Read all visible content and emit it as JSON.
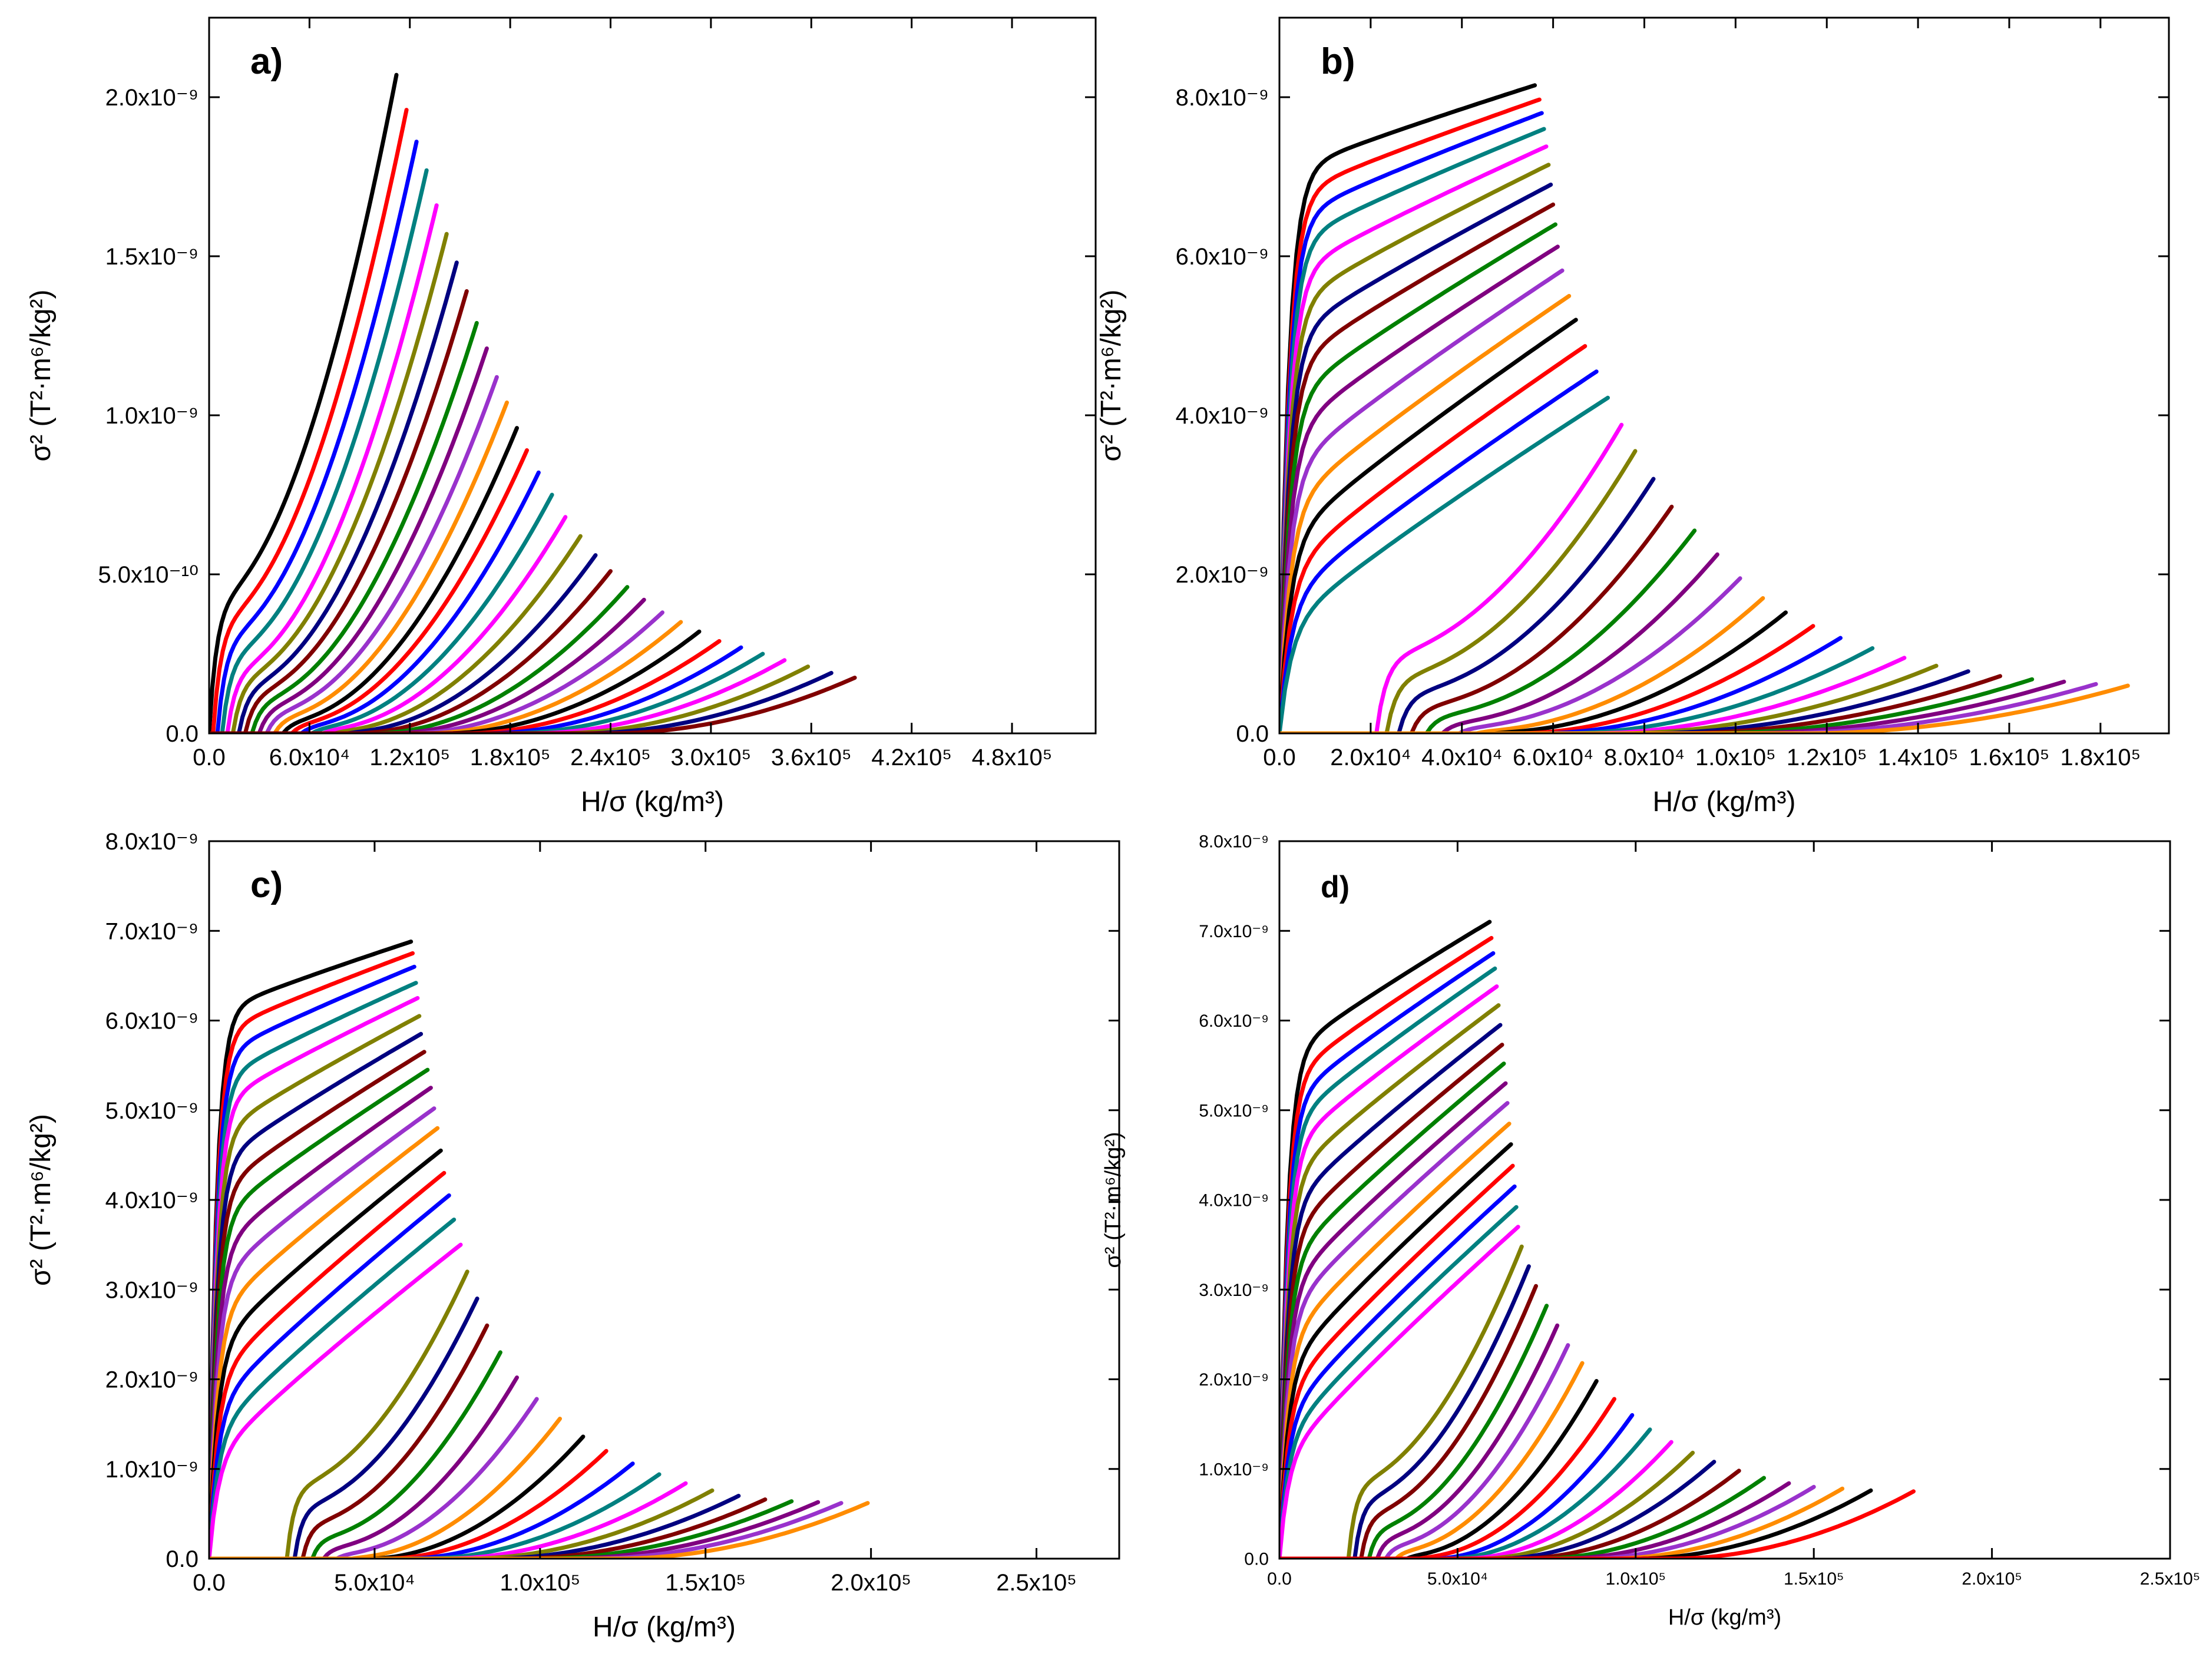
{
  "figure": {
    "palette": [
      "#000000",
      "#ff0000",
      "#0000ff",
      "#008080",
      "#ff00ff",
      "#808000",
      "#000080",
      "#800000",
      "#008000",
      "#800080",
      "#9932cc",
      "#ff8c00"
    ]
  },
  "chart_data": [
    {
      "type": "line",
      "panel": "a)",
      "xlabel": "H/σ (kg/m³)",
      "ylabel": "σ² (T²·m⁶/kg²)",
      "xlim": [
        0,
        530000
      ],
      "ylim": [
        0,
        2.25e-09
      ],
      "xticks": [
        0,
        60000,
        120000,
        180000,
        240000,
        300000,
        360000,
        420000,
        480000
      ],
      "xtick_labels": [
        "0.0",
        "6.0x10⁴",
        "1.2x10⁵",
        "1.8x10⁵",
        "2.4x10⁵",
        "3.0x10⁵",
        "3.6x10⁵",
        "4.2x10⁵",
        "4.8x10⁵"
      ],
      "yticks": [
        0,
        5e-10,
        1e-09,
        1.5e-09,
        2e-09
      ],
      "ytick_labels": [
        "0.0",
        "5.0x10⁻¹⁰",
        "1.0x10⁻⁹",
        "1.5x10⁻⁹",
        "2.0x10⁻⁹"
      ],
      "curve_end_x": [
        112000,
        118000,
        124000,
        130000,
        136000,
        142000,
        148000,
        154000,
        160000,
        166000,
        172000,
        178000,
        184000,
        190000,
        197000,
        205000,
        213000,
        222000,
        231000,
        240000,
        250000,
        260000,
        271000,
        282000,
        293000,
        305000,
        318000,
        331000,
        344000,
        358000,
        372000,
        386000
      ],
      "curve_end_y": [
        2.07e-09,
        1.96e-09,
        1.86e-09,
        1.77e-09,
        1.66e-09,
        1.57e-09,
        1.48e-09,
        1.39e-09,
        1.29e-09,
        1.21e-09,
        1.12e-09,
        1.04e-09,
        9.6e-10,
        8.9e-10,
        8.2e-10,
        7.5e-10,
        6.8e-10,
        6.2e-10,
        5.6e-10,
        5.1e-10,
        4.6e-10,
        4.2e-10,
        3.8e-10,
        3.5e-10,
        3.2e-10,
        2.9e-10,
        2.7e-10,
        2.5e-10,
        2.3e-10,
        2.1e-10,
        1.9e-10,
        1.75e-10
      ],
      "curve_knee_frac": [
        0.2,
        0.18,
        0.16,
        0.14,
        0.12,
        0.11,
        0.1,
        0.09,
        0.08,
        0.07,
        0.06,
        0.05,
        0.04,
        0.035,
        0.03,
        0.025,
        0.02,
        0.015,
        0.01,
        0.006,
        0.003,
        0.001,
        0,
        0,
        0,
        0,
        0,
        0,
        0,
        0,
        0,
        0
      ]
    },
    {
      "type": "line",
      "panel": "b)",
      "xlabel": "H/σ (kg/m³)",
      "ylabel": "σ² (T²·m⁶/kg²)",
      "xlim": [
        0,
        195000
      ],
      "ylim": [
        0,
        9e-09
      ],
      "xticks": [
        0,
        20000,
        40000,
        60000,
        80000,
        100000,
        120000,
        140000,
        160000,
        180000
      ],
      "xtick_labels": [
        "0.0",
        "2.0x10⁴",
        "4.0x10⁴",
        "6.0x10⁴",
        "8.0x10⁴",
        "1.0x10⁵",
        "1.2x10⁵",
        "1.4x10⁵",
        "1.6x10⁵",
        "1.8x10⁵"
      ],
      "yticks": [
        0,
        2e-09,
        4e-09,
        6e-09,
        8e-09
      ],
      "ytick_labels": [
        "0.0",
        "2.0x10⁻⁹",
        "4.0x10⁻⁹",
        "6.0x10⁻⁹",
        "8.0x10⁻⁹"
      ],
      "curve_end_x": [
        56000,
        57000,
        57500,
        58000,
        58500,
        59000,
        59500,
        60000,
        60500,
        61000,
        62000,
        63500,
        65000,
        67000,
        69500,
        72000,
        75000,
        78000,
        82000,
        86000,
        91000,
        96000,
        101000,
        106000,
        111000,
        117000,
        123000,
        130000,
        137000,
        144000,
        151000,
        158000,
        165000,
        172000,
        179000,
        186000
      ],
      "curve_end_y": [
        8.15e-09,
        7.97e-09,
        7.8e-09,
        7.6e-09,
        7.38e-09,
        7.15e-09,
        6.9e-09,
        6.65e-09,
        6.4e-09,
        6.12e-09,
        5.82e-09,
        5.5e-09,
        5.2e-09,
        4.87e-09,
        4.55e-09,
        4.22e-09,
        3.88e-09,
        3.55e-09,
        3.2e-09,
        2.85e-09,
        2.55e-09,
        2.25e-09,
        1.95e-09,
        1.7e-09,
        1.52e-09,
        1.35e-09,
        1.2e-09,
        1.07e-09,
        9.5e-10,
        8.5e-10,
        7.8e-10,
        7.2e-10,
        6.8e-10,
        6.5e-10,
        6.2e-10,
        6e-10
      ],
      "curve_knee_frac": [
        0.86,
        0.84,
        0.82,
        0.8,
        0.77,
        0.74,
        0.71,
        0.68,
        0.64,
        0.6,
        0.55,
        0.5,
        0.45,
        0.4,
        0.35,
        0.3,
        0.25,
        0.2,
        0.16,
        0.12,
        0.09,
        0.06,
        0.04,
        0.02,
        0.01,
        0,
        0,
        0,
        0,
        0,
        0,
        0,
        0,
        0,
        0,
        0
      ]
    },
    {
      "type": "line",
      "panel": "c)",
      "xlabel": "H/σ (kg/m³)",
      "ylabel": "σ² (T²·m⁶/kg²)",
      "xlim": [
        0,
        275000
      ],
      "ylim": [
        0,
        8e-09
      ],
      "xticks": [
        0,
        50000,
        100000,
        150000,
        200000,
        250000
      ],
      "xtick_labels": [
        "0.0",
        "5.0x10⁴",
        "1.0x10⁵",
        "1.5x10⁵",
        "2.0x10⁵",
        "2.5x10⁵"
      ],
      "yticks": [
        0,
        1e-09,
        2e-09,
        3e-09,
        4e-09,
        5e-09,
        6e-09,
        7e-09,
        8e-09
      ],
      "ytick_labels": [
        "0.0",
        "1.0x10⁻⁹",
        "2.0x10⁻⁹",
        "3.0x10⁻⁹",
        "4.0x10⁻⁹",
        "5.0x10⁻⁹",
        "6.0x10⁻⁹",
        "7.0x10⁻⁹",
        "8.0x10⁻⁹"
      ],
      "curve_end_x": [
        61000,
        61500,
        62000,
        62500,
        63000,
        63500,
        64000,
        65000,
        66000,
        67000,
        68000,
        69000,
        70000,
        71000,
        72500,
        74000,
        76000,
        78000,
        81000,
        84000,
        88000,
        93000,
        99000,
        106000,
        113000,
        120000,
        128000,
        136000,
        144000,
        152000,
        160000,
        168000,
        176000,
        184000,
        191000,
        199000
      ],
      "curve_end_y": [
        6.88e-09,
        6.75e-09,
        6.6e-09,
        6.42e-09,
        6.25e-09,
        6.05e-09,
        5.85e-09,
        5.65e-09,
        5.45e-09,
        5.25e-09,
        5.02e-09,
        4.8e-09,
        4.55e-09,
        4.3e-09,
        4.05e-09,
        3.78e-09,
        3.5e-09,
        3.2e-09,
        2.9e-09,
        2.6e-09,
        2.3e-09,
        2.02e-09,
        1.78e-09,
        1.56e-09,
        1.36e-09,
        1.2e-09,
        1.06e-09,
        9.4e-10,
        8.4e-10,
        7.6e-10,
        7e-10,
        6.6e-10,
        6.4e-10,
        6.3e-10,
        6.2e-10,
        6.2e-10
      ],
      "curve_knee_frac": [
        0.88,
        0.86,
        0.84,
        0.82,
        0.8,
        0.77,
        0.74,
        0.71,
        0.68,
        0.64,
        0.6,
        0.55,
        0.5,
        0.45,
        0.4,
        0.35,
        0.3,
        0.25,
        0.2,
        0.15,
        0.1,
        0.06,
        0.03,
        0.01,
        0,
        0,
        0,
        0,
        0,
        0,
        0,
        0,
        0,
        0,
        0,
        0
      ]
    },
    {
      "type": "line",
      "panel": "d)",
      "xlabel": "H/σ (kg/m³)",
      "ylabel": "σ² (T²·m⁶/kg²)",
      "xlim": [
        0,
        250000
      ],
      "ylim": [
        0,
        8e-09
      ],
      "xticks": [
        0,
        50000,
        100000,
        150000,
        200000,
        250000
      ],
      "xtick_labels": [
        "0.0",
        "5.0x10⁴",
        "1.0x10⁵",
        "1.5x10⁵",
        "2.0x10⁵",
        "2.5x10⁵"
      ],
      "yticks": [
        0,
        1e-09,
        2e-09,
        3e-09,
        4e-09,
        5e-09,
        6e-09,
        7e-09,
        8e-09
      ],
      "ytick_labels": [
        "0.0",
        "1.0x10⁻⁹",
        "2.0x10⁻⁹",
        "3.0x10⁻⁹",
        "4.0x10⁻⁹",
        "5.0x10⁻⁹",
        "6.0x10⁻⁹",
        "7.0x10⁻⁹",
        "8.0x10⁻⁹"
      ],
      "curve_end_x": [
        59000,
        59500,
        60000,
        60500,
        61000,
        61500,
        62000,
        62500,
        63000,
        63500,
        64000,
        64500,
        65000,
        65500,
        66000,
        66500,
        67000,
        68000,
        70000,
        72000,
        75000,
        78000,
        81000,
        85000,
        89000,
        94000,
        99000,
        104000,
        110000,
        116000,
        122000,
        129000,
        136000,
        143000,
        150000,
        158000,
        166000,
        178000
      ],
      "curve_end_y": [
        7.1e-09,
        6.92e-09,
        6.75e-09,
        6.58e-09,
        6.38e-09,
        6.17e-09,
        5.95e-09,
        5.73e-09,
        5.52e-09,
        5.3e-09,
        5.08e-09,
        4.85e-09,
        4.62e-09,
        4.38e-09,
        4.15e-09,
        3.92e-09,
        3.7e-09,
        3.48e-09,
        3.26e-09,
        3.04e-09,
        2.82e-09,
        2.6e-09,
        2.38e-09,
        2.18e-09,
        1.98e-09,
        1.78e-09,
        1.6e-09,
        1.44e-09,
        1.3e-09,
        1.18e-09,
        1.08e-09,
        9.8e-10,
        9e-10,
        8.4e-10,
        8e-10,
        7.8e-10,
        7.6e-10,
        7.5e-10
      ],
      "curve_knee_frac": [
        0.78,
        0.76,
        0.74,
        0.72,
        0.7,
        0.67,
        0.64,
        0.61,
        0.58,
        0.55,
        0.52,
        0.48,
        0.44,
        0.4,
        0.36,
        0.32,
        0.28,
        0.24,
        0.2,
        0.16,
        0.12,
        0.09,
        0.06,
        0.04,
        0.02,
        0.01,
        0,
        0,
        0,
        0,
        0,
        0,
        0,
        0,
        0,
        0,
        0,
        0
      ]
    }
  ]
}
